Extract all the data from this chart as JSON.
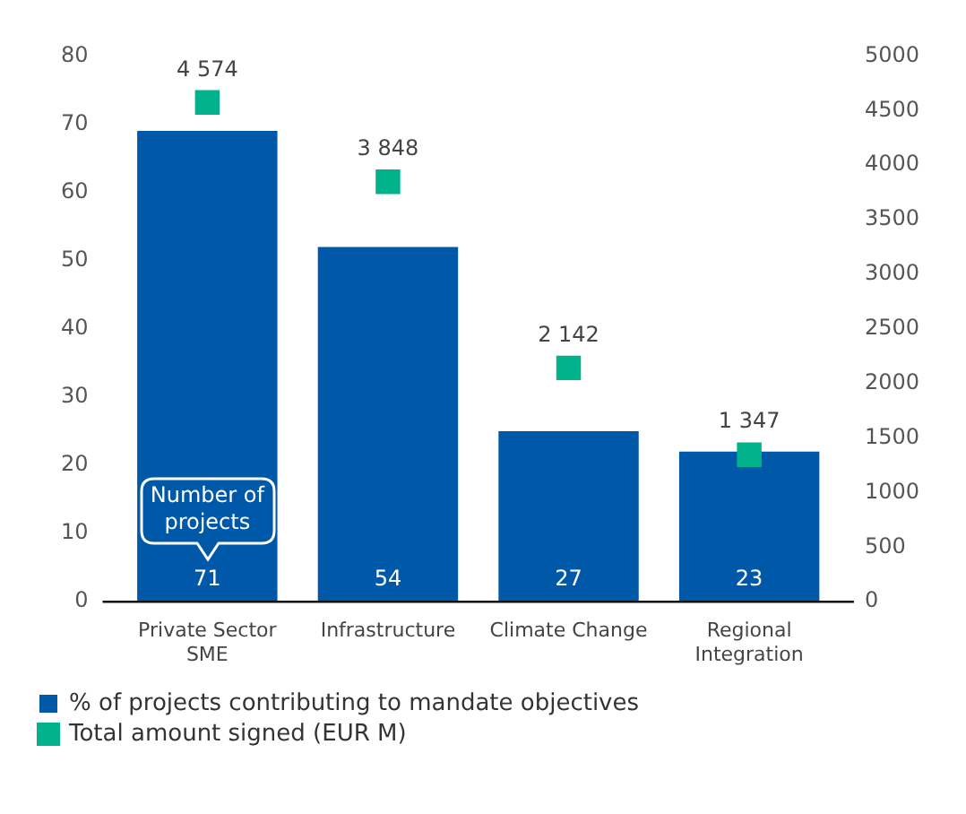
{
  "chart_data": {
    "type": "bar",
    "categories": [
      "Private Sector SME",
      "Infrastructure",
      "Climate Change",
      "Regional Integration"
    ],
    "series": [
      {
        "name": "% of projects contributing to mandate objectives",
        "color": "#0058a9",
        "values": [
          69,
          52,
          25,
          22
        ]
      },
      {
        "name": "Total amount signed (EUR M)",
        "type": "scatter",
        "axis": "y2",
        "color": "#00b38a",
        "marker": "square",
        "values": [
          4574,
          3848,
          2142,
          1347
        ],
        "value_labels": [
          "4 574",
          "3 848",
          "2 142",
          "1 347"
        ]
      }
    ],
    "ylim": [
      0,
      80
    ],
    "yticks": [
      0,
      10,
      20,
      30,
      40,
      50,
      60,
      70,
      80
    ],
    "y2lim": [
      0,
      5000
    ],
    "y2ticks": [
      0,
      500,
      1000,
      1500,
      2000,
      2500,
      3000,
      3500,
      4000,
      4500,
      5000
    ],
    "grid": false,
    "legend": "bottom",
    "annotations": [
      "Number of projects",
      "71",
      "54",
      "27",
      "23"
    ]
  }
}
